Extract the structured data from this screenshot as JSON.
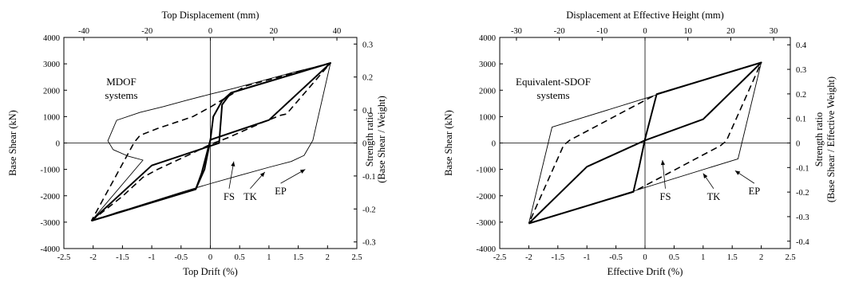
{
  "chart_data": [
    {
      "type": "line",
      "xlabel": "Top Drift (%)",
      "x2label": "Top Displacement  (mm)",
      "ylabel": "Base Shear (kN)",
      "y2label": [
        "Strength ratio",
        "(Base Shear / Weight)"
      ],
      "annotation": [
        "MDOF",
        "systems"
      ],
      "xlim": [
        -2.5,
        2.5
      ],
      "ylim": [
        -4000,
        4000
      ],
      "x2lim": [
        -46.3,
        46.3
      ],
      "y2lim": [
        -0.32,
        0.32
      ],
      "xticks": [
        -2.5,
        -2,
        -1.5,
        -1,
        -0.5,
        0,
        0.5,
        1,
        1.5,
        2,
        2.5
      ],
      "xtick_labels": [
        "-2.5",
        "-2",
        "-1.5",
        "-1",
        "-0.5",
        "0",
        "0.5",
        "1",
        "1.5",
        "2",
        "2.5"
      ],
      "yticks": [
        -4000,
        -3000,
        -2000,
        -1000,
        0,
        1000,
        2000,
        3000,
        4000
      ],
      "ytick_labels": [
        "-4000",
        "-3000",
        "-2000",
        "-1000",
        "0",
        "1000",
        "2000",
        "3000",
        "4000"
      ],
      "x2ticks": [
        -40,
        -20,
        0,
        20,
        40
      ],
      "x2tick_labels": [
        "-40",
        "-20",
        "0",
        "20",
        "40"
      ],
      "y2ticks": [
        -0.3,
        -0.2,
        -0.1,
        0,
        0.1,
        0.2,
        0.3
      ],
      "y2tick_labels": [
        "-0.3",
        "-0.2",
        "-0.1",
        "0",
        "0.1",
        "0.2",
        "0.3"
      ],
      "grid": false,
      "series": [
        {
          "name": "EP",
          "label_pos": [
            1.2,
            -1800
          ],
          "arrow_to": [
            1.62,
            -1000
          ],
          "x": [
            -2.03,
            -1.75,
            -1.6,
            -1.4,
            -1.0,
            -0.5,
            0.0,
            0.5,
            1.0,
            1.38,
            1.6,
            1.75,
            2.05,
            1.4,
            0.95,
            0.4,
            0.0,
            -0.4,
            -0.8,
            -1.2,
            -1.6,
            -1.75,
            -1.66,
            -1.4,
            -1.15,
            -2.03
          ],
          "y": [
            -2950,
            -2750,
            -2630,
            -2500,
            -2220,
            -1870,
            -1540,
            -1230,
            -920,
            -700,
            -470,
            100,
            3030,
            2670,
            2400,
            2070,
            1850,
            1620,
            1380,
            1160,
            860,
            80,
            -250,
            -500,
            -650,
            -2950
          ]
        },
        {
          "name": "TK",
          "label_pos": [
            0.68,
            -2000
          ],
          "arrow_to": [
            0.93,
            -1100
          ],
          "dashed": true,
          "x": [
            -2.03,
            -1.5,
            -1.15,
            -0.9,
            -0.3,
            0.0,
            0.3,
            0.9,
            1.2,
            1.3,
            2.05,
            1.3,
            0.6,
            0.0,
            -0.3,
            -0.9,
            -1.2,
            -1.3,
            -2.03
          ],
          "y": [
            -2950,
            -2020,
            -1300,
            -1000,
            -380,
            -50,
            200,
            790,
            1050,
            1100,
            3030,
            2580,
            2160,
            1360,
            1000,
            550,
            290,
            20,
            -2950
          ]
        },
        {
          "name": "FS",
          "label_pos": [
            0.32,
            -2000
          ],
          "arrow_to": [
            0.4,
            -700
          ],
          "bold": true,
          "x": [
            -2.03,
            -1.0,
            0.15,
            0.2,
            0.35,
            2.05,
            1.0,
            0.0,
            -0.15,
            -0.25,
            -2.03
          ],
          "y": [
            -2950,
            -850,
            0,
            1450,
            1900,
            3030,
            870,
            120,
            -1150,
            -1750,
            -2950
          ]
        },
        {
          "bold": true,
          "x": [
            -2.03,
            -0.25,
            -0.1,
            0.0,
            0.05,
            0.2,
            0.35,
            2.05
          ],
          "y": [
            -2950,
            -1750,
            -1000,
            100,
            1000,
            1600,
            1900,
            3030
          ]
        },
        {
          "x": [
            -1.6,
            -1.6
          ],
          "y": [
            860,
            860
          ]
        }
      ]
    },
    {
      "type": "line",
      "xlabel": "Effective  Drift (%)",
      "x2label": "Displacement  at Effective Height (mm)",
      "ylabel": "Base Shear (kN)",
      "y2label": [
        "Strength ratio",
        "(Base Shear / Effective Weight)"
      ],
      "annotation": [
        "Equivalent-SDOF",
        "systems"
      ],
      "xlim": [
        -2.5,
        2.5
      ],
      "ylim": [
        -4000,
        4000
      ],
      "x2lim": [
        -33.9,
        33.9
      ],
      "y2lim": [
        -0.43,
        0.43
      ],
      "xticks": [
        -2.5,
        -2,
        -1.5,
        -1,
        -0.5,
        0,
        0.5,
        1,
        1.5,
        2,
        2.5
      ],
      "xtick_labels": [
        "-2.5",
        "-2",
        "-1.5",
        "-1",
        "-0.5",
        "0",
        "0.5",
        "1",
        "1.5",
        "2",
        "2.5"
      ],
      "yticks": [
        -4000,
        -3000,
        -2000,
        -1000,
        0,
        1000,
        2000,
        3000,
        4000
      ],
      "ytick_labels": [
        "-4000",
        "-3000",
        "-2000",
        "-1000",
        "0",
        "1000",
        "2000",
        "3000",
        "4000"
      ],
      "x2ticks": [
        -30,
        -20,
        -10,
        0,
        10,
        20,
        30
      ],
      "x2tick_labels": [
        "-30",
        "-20",
        "-10",
        "0",
        "10",
        "20",
        "30"
      ],
      "y2ticks": [
        -0.4,
        -0.3,
        -0.2,
        -0.1,
        0,
        0.1,
        0.2,
        0.3,
        0.4
      ],
      "y2tick_labels": [
        "-0.4",
        "-0.3",
        "-0.2",
        "-0.1",
        "0",
        "0.1",
        "0.2",
        "0.3",
        "0.4"
      ],
      "grid": false,
      "series": [
        {
          "name": "EP",
          "label_pos": [
            1.88,
            -1800
          ],
          "arrow_to": [
            1.55,
            -1050
          ],
          "x": [
            -2.0,
            1.6,
            2.0,
            -1.6,
            -2.0
          ],
          "y": [
            -3050,
            -600,
            3050,
            600,
            -3050
          ]
        },
        {
          "name": "TK",
          "label_pos": [
            1.18,
            -2000
          ],
          "arrow_to": [
            1.0,
            -1150
          ],
          "dashed": true,
          "x": [
            -2.0,
            -0.2,
            1.3,
            1.4,
            2.0,
            0.2,
            -1.3,
            -1.4,
            -2.0
          ],
          "y": [
            -3050,
            -1850,
            -100,
            80,
            3050,
            1850,
            100,
            -80,
            -3050
          ]
        },
        {
          "name": "FS",
          "label_pos": [
            0.35,
            -2000
          ],
          "arrow_to": [
            0.3,
            -650
          ],
          "bold": true,
          "x": [
            -2.0,
            -0.2,
            -0.1,
            0.0,
            0.2,
            2.0,
            1.0,
            0.0,
            -1.0,
            -2.0
          ],
          "y": [
            -3050,
            -1850,
            -900,
            150,
            1850,
            3050,
            900,
            100,
            -900,
            -3050
          ]
        }
      ]
    }
  ]
}
